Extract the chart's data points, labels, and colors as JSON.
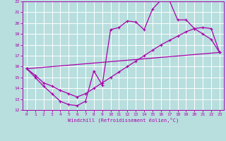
{
  "xlabel": "Windchill (Refroidissement éolien,°C)",
  "xlim": [
    -0.5,
    23.5
  ],
  "ylim": [
    12,
    22
  ],
  "yticks": [
    12,
    13,
    14,
    15,
    16,
    17,
    18,
    19,
    20,
    21,
    22
  ],
  "xticks": [
    0,
    1,
    2,
    3,
    4,
    5,
    6,
    7,
    8,
    9,
    10,
    11,
    12,
    13,
    14,
    15,
    16,
    17,
    18,
    19,
    20,
    21,
    22,
    23
  ],
  "bg_color": "#b8dede",
  "grid_color": "#ffffff",
  "line_color": "#aa00aa",
  "curve1_x": [
    0,
    1,
    2,
    3,
    4,
    5,
    6,
    7,
    8,
    9,
    10,
    11,
    12,
    13,
    14,
    15,
    16,
    17,
    18,
    19,
    20,
    21,
    22,
    23
  ],
  "curve1_y": [
    15.8,
    15.0,
    14.2,
    13.5,
    12.8,
    12.5,
    12.4,
    12.8,
    15.6,
    14.3,
    19.4,
    19.6,
    20.2,
    20.1,
    19.4,
    21.3,
    22.1,
    22.1,
    20.3,
    20.3,
    19.5,
    19.0,
    18.5,
    17.3
  ],
  "curve2_x": [
    0,
    1,
    2,
    3,
    4,
    5,
    6,
    7,
    8,
    9,
    10,
    11,
    12,
    13,
    14,
    15,
    16,
    17,
    18,
    19,
    20,
    21,
    22,
    23
  ],
  "curve2_y": [
    15.8,
    15.2,
    14.5,
    14.2,
    13.8,
    13.5,
    13.2,
    13.5,
    14.0,
    14.5,
    15.0,
    15.5,
    16.0,
    16.5,
    17.0,
    17.5,
    18.0,
    18.4,
    18.8,
    19.2,
    19.5,
    19.6,
    19.5,
    17.3
  ],
  "curve3_x": [
    0,
    23
  ],
  "curve3_y": [
    15.8,
    17.3
  ]
}
